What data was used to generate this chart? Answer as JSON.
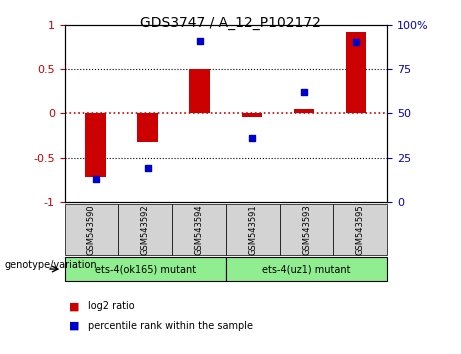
{
  "title": "GDS3747 / A_12_P102172",
  "samples": [
    "GSM543590",
    "GSM543592",
    "GSM543594",
    "GSM543591",
    "GSM543593",
    "GSM543595"
  ],
  "log2_ratio": [
    -0.72,
    -0.33,
    0.5,
    -0.04,
    0.05,
    0.92
  ],
  "percentile_rank": [
    13,
    19,
    91,
    36,
    62,
    90
  ],
  "groups": [
    {
      "label": "ets-4(ok165) mutant",
      "samples": [
        0,
        1,
        2
      ],
      "color": "#90ee90"
    },
    {
      "label": "ets-4(uz1) mutant",
      "samples": [
        3,
        4,
        5
      ],
      "color": "#90ee90"
    }
  ],
  "bar_color": "#cc0000",
  "dot_color": "#0000cc",
  "bar_width": 0.4,
  "ylim_left": [
    -1,
    1
  ],
  "ylim_right": [
    0,
    100
  ],
  "yticks_left": [
    -1,
    -0.5,
    0,
    0.5,
    1
  ],
  "yticks_right": [
    0,
    25,
    50,
    75,
    100
  ],
  "bg_plot": "#ffffff",
  "bg_labels": "#d3d3d3",
  "legend_items": [
    {
      "label": "log2 ratio",
      "color": "#cc0000"
    },
    {
      "label": "percentile rank within the sample",
      "color": "#0000cc"
    }
  ]
}
